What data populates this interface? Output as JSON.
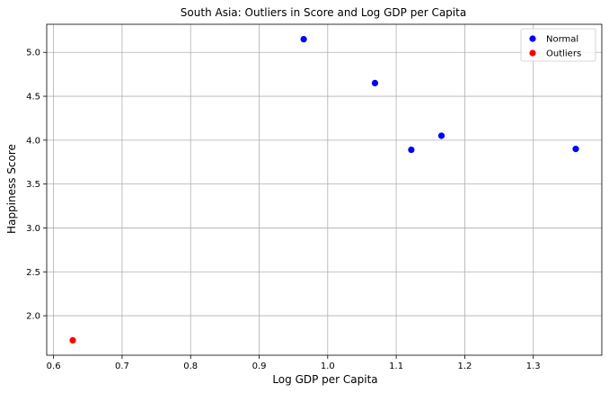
{
  "chart_data": {
    "type": "scatter",
    "title": "South Asia: Outliers in Score and Log GDP per Capita",
    "xlabel": "Log GDP per Capita",
    "ylabel": "Happiness Score",
    "xlim": [
      0.59,
      1.4
    ],
    "ylim": [
      1.55,
      5.32
    ],
    "xticks": [
      0.6,
      0.7,
      0.8,
      0.9,
      1.0,
      1.1,
      1.2,
      1.3
    ],
    "yticks": [
      2.0,
      2.5,
      3.0,
      3.5,
      4.0,
      4.5,
      5.0
    ],
    "grid": true,
    "legend_position": "top-right",
    "series": [
      {
        "name": "Normal",
        "color": "#0000ff",
        "points": [
          {
            "x": 0.965,
            "y": 5.15
          },
          {
            "x": 1.069,
            "y": 4.65
          },
          {
            "x": 1.122,
            "y": 3.89
          },
          {
            "x": 1.166,
            "y": 4.05
          },
          {
            "x": 1.362,
            "y": 3.9
          }
        ]
      },
      {
        "name": "Outliers",
        "color": "#ff0000",
        "points": [
          {
            "x": 0.628,
            "y": 1.72
          }
        ]
      }
    ]
  }
}
